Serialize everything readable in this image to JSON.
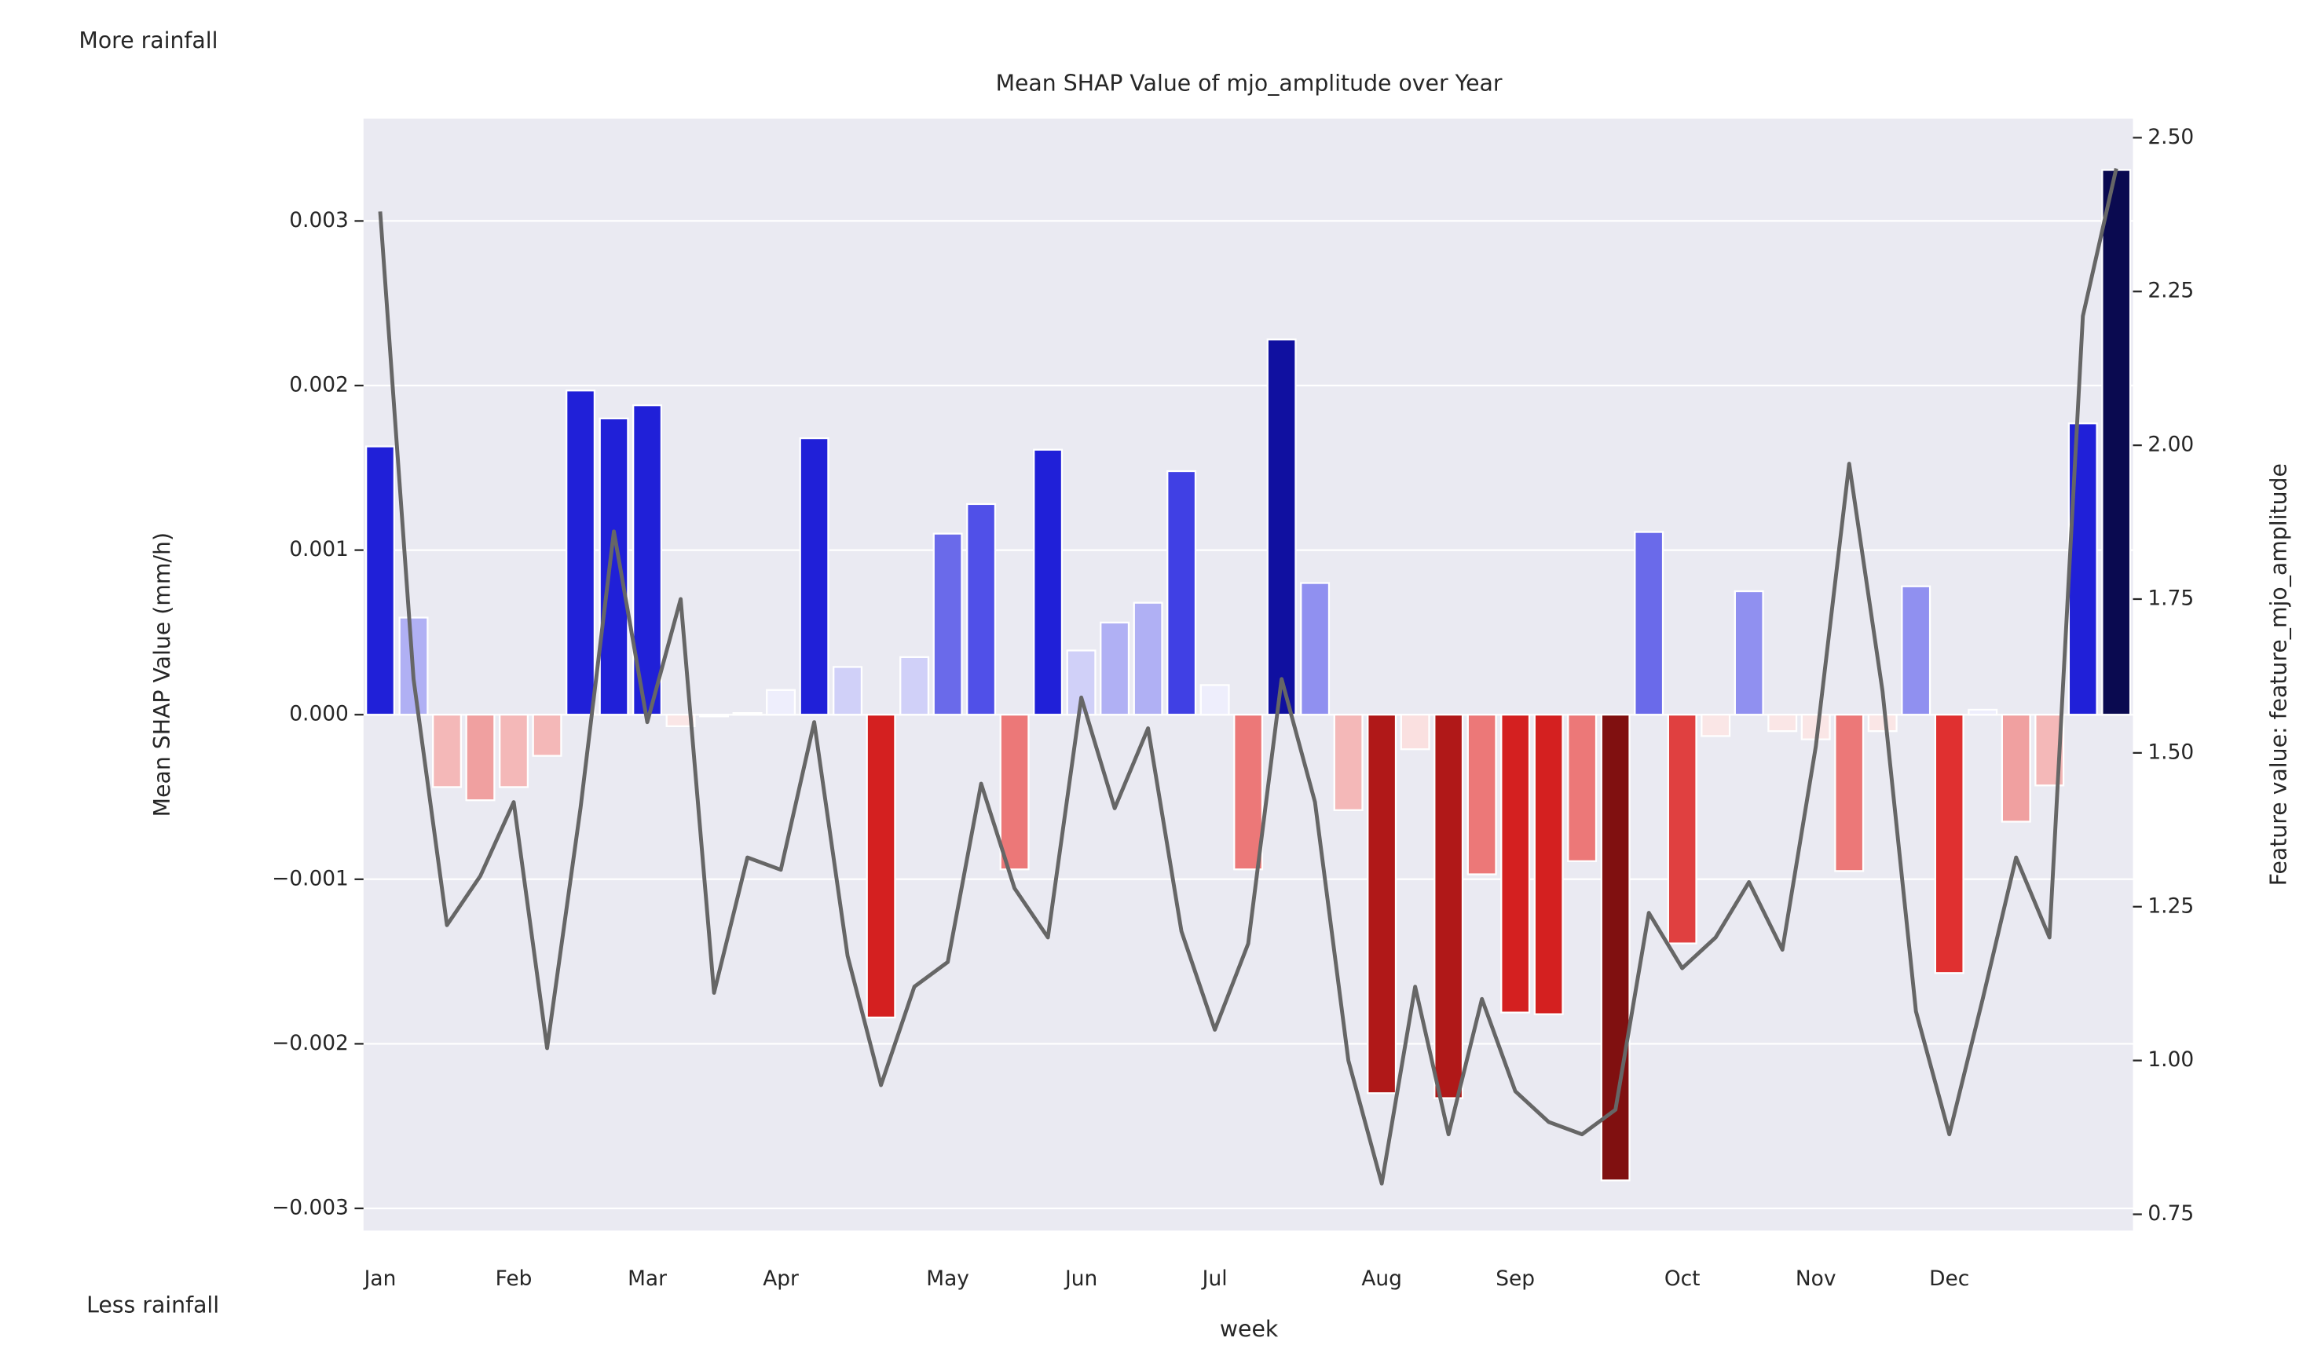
{
  "chart_data": {
    "type": "bar",
    "title": "Mean SHAP Value of mjo_amplitude over Year",
    "xlabel": "week",
    "ylabel": "Mean SHAP Value (mm/h)",
    "y2label": "Feature value: feature_mjo_amplitude",
    "annotations": [
      "More rainfall",
      "Less rainfall"
    ],
    "background": "#eaeaf2",
    "grid": true,
    "categories": [
      "Jan",
      null,
      null,
      null,
      "Feb",
      null,
      null,
      null,
      "Mar",
      null,
      null,
      null,
      "Apr",
      null,
      null,
      null,
      null,
      "May",
      null,
      null,
      null,
      "Jun",
      null,
      null,
      null,
      "Jul",
      null,
      null,
      null,
      null,
      "Aug",
      null,
      null,
      null,
      "Sep",
      null,
      null,
      null,
      null,
      "Oct",
      null,
      null,
      null,
      "Nov",
      null,
      null,
      null,
      "Dec",
      null,
      null,
      null,
      null,
      null
    ],
    "ylim": [
      -0.003135,
      0.003622
    ],
    "yticks": [
      {
        "value": -0.003,
        "label": "−0.003"
      },
      {
        "value": -0.002,
        "label": "−0.002"
      },
      {
        "value": -0.001,
        "label": "−0.001"
      },
      {
        "value": 0,
        "label": "0.000"
      },
      0.001,
      0.002,
      0.003
    ],
    "y2lim": [
      0.7235,
      2.531
    ],
    "y2ticks": [
      0.75,
      {
        "value": 1,
        "label": "1.00"
      },
      1.25,
      {
        "value": 1.5,
        "label": "1.50"
      },
      1.75,
      {
        "value": 2,
        "label": "2.00"
      },
      2.25,
      {
        "value": 2.5,
        "label": "2.50"
      }
    ],
    "series": [
      {
        "type": "bar",
        "axis": "y",
        "values": [
          0.00163,
          0.00059,
          -0.00044,
          -0.00052,
          -0.00044,
          -0.00025,
          0.00197,
          0.0018,
          0.00188,
          -7e-05,
          -1e-05,
          1e-05,
          0.00015,
          0.00168,
          0.00029,
          -0.00184,
          0.00035,
          0.0011,
          0.00128,
          -0.00094,
          0.00161,
          0.00039,
          0.00056,
          0.00068,
          0.00148,
          0.00018,
          -0.00094,
          0.00228,
          0.0008,
          -0.00058,
          -0.0023,
          -0.00021,
          -0.00233,
          -0.00097,
          -0.00181,
          -0.00182,
          -0.00089,
          -0.00283,
          0.00111,
          -0.00139,
          -0.00013,
          0.00075,
          -0.0001,
          -0.00015,
          -0.00095,
          -0.0001,
          0.00078,
          -0.00157,
          3e-05,
          -0.00065,
          -0.00043,
          0.00177,
          0.00331
        ],
        "colors": [
          "#2020d8",
          "#b0b0f4",
          "#f4b8b8",
          "#f0a0a0",
          "#f4b8b8",
          "#f4b8b8",
          "#2020d8",
          "#2020d8",
          "#2020d8",
          "#fae6e6",
          "#fae6e6",
          "#eeeefc",
          "#eeeefc",
          "#2020d8",
          "#d0d0f8",
          "#d42020",
          "#d0d0f8",
          "#6a6aea",
          "#5050e8",
          "#ec7878",
          "#2020d8",
          "#d0d0f8",
          "#b0b0f4",
          "#b0b0f4",
          "#4040e4",
          "#eeeefc",
          "#ec7878",
          "#1010a0",
          "#9090f0",
          "#f4b8b8",
          "#b01818",
          "#fae0e0",
          "#b01818",
          "#ec7878",
          "#d42020",
          "#d42020",
          "#ec7878",
          "#801010",
          "#6a6aea",
          "#e04040",
          "#fae6e6",
          "#9090f0",
          "#fae6e6",
          "#fae6e6",
          "#ec7878",
          "#fae6e6",
          "#9090f0",
          "#e03030",
          "#eeeefc",
          "#f0a0a0",
          "#f4b8b8",
          "#2020d8",
          "#0a0a50"
        ]
      },
      {
        "type": "line",
        "axis": "y2",
        "color": "#666666",
        "values": [
          2.38,
          1.62,
          1.22,
          1.3,
          1.42,
          1.02,
          1.41,
          1.86,
          1.55,
          1.75,
          1.11,
          1.33,
          1.31,
          1.55,
          1.17,
          0.96,
          1.12,
          1.16,
          1.45,
          1.28,
          1.2,
          1.59,
          1.41,
          1.54,
          1.21,
          1.05,
          1.19,
          1.62,
          1.42,
          1.0,
          0.8,
          1.12,
          0.88,
          1.1,
          0.95,
          0.9,
          0.88,
          0.92,
          1.24,
          1.15,
          1.2,
          1.29,
          1.18,
          1.51,
          1.97,
          1.6,
          1.08,
          0.88,
          1.1,
          1.33,
          1.2,
          2.21,
          2.45
        ]
      }
    ]
  }
}
